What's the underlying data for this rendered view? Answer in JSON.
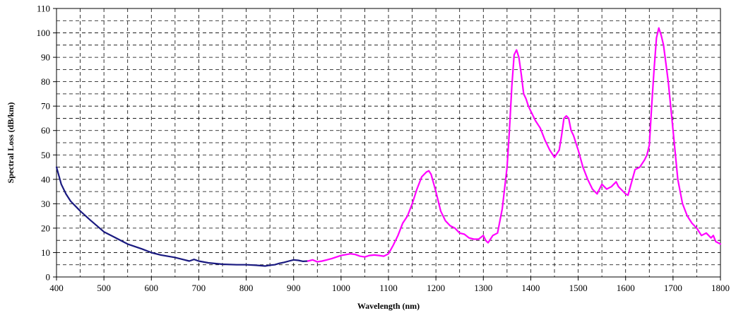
{
  "chart_data": {
    "type": "line",
    "xlabel": "Wavelength (nm)",
    "ylabel": "Spectral Loss (dB/km)",
    "xlim": [
      400,
      1800
    ],
    "ylim": [
      0,
      110
    ],
    "x_ticks": [
      400,
      500,
      600,
      700,
      800,
      900,
      1000,
      1100,
      1200,
      1300,
      1400,
      1500,
      1600,
      1700,
      1800
    ],
    "y_ticks": [
      0,
      10,
      20,
      30,
      40,
      50,
      60,
      70,
      80,
      90,
      100,
      110
    ],
    "x_minor_step": 50,
    "y_minor_step": 5,
    "grid": true,
    "legend": "none",
    "series": [
      {
        "color": "#1a1a80",
        "x": [
          400,
          410,
          420,
          430,
          440,
          450,
          470,
          500,
          520,
          550,
          580,
          600,
          620,
          650,
          670,
          680,
          690,
          700,
          720,
          750,
          780,
          800,
          820,
          840,
          850,
          860,
          870,
          880,
          890,
          900,
          910,
          920,
          930
        ],
        "y": [
          45,
          38,
          34,
          31,
          29,
          27,
          23.5,
          18.5,
          16.5,
          13.5,
          11.5,
          10,
          9,
          8,
          7,
          6.5,
          7.2,
          6.5,
          5.8,
          5.2,
          5,
          5,
          4.8,
          4.5,
          4.8,
          5,
          5.6,
          6,
          6.5,
          7,
          6.8,
          6.4,
          6.5
        ]
      },
      {
        "color": "#ff00ff",
        "x": [
          930,
          940,
          950,
          960,
          970,
          980,
          1000,
          1020,
          1030,
          1040,
          1050,
          1060,
          1070,
          1080,
          1090,
          1100,
          1110,
          1120,
          1130,
          1140,
          1150,
          1160,
          1170,
          1180,
          1185,
          1190,
          1200,
          1210,
          1220,
          1230,
          1240,
          1250,
          1260,
          1270,
          1280,
          1290,
          1300,
          1305,
          1310,
          1320,
          1330,
          1340,
          1350,
          1355,
          1360,
          1365,
          1370,
          1375,
          1380,
          1385,
          1390,
          1395,
          1400,
          1410,
          1420,
          1430,
          1440,
          1450,
          1460,
          1465,
          1470,
          1475,
          1480,
          1485,
          1490,
          1500,
          1510,
          1520,
          1530,
          1540,
          1550,
          1555,
          1560,
          1570,
          1580,
          1585,
          1590,
          1600,
          1605,
          1610,
          1620,
          1630,
          1640,
          1645,
          1650,
          1655,
          1660,
          1665,
          1670,
          1675,
          1680,
          1690,
          1700,
          1710,
          1720,
          1730,
          1740,
          1750,
          1760,
          1770,
          1780,
          1785,
          1790,
          1795,
          1800
        ],
        "y": [
          6.5,
          7,
          6.2,
          6.5,
          7,
          7.5,
          8.8,
          9.5,
          9.2,
          8.5,
          8.2,
          8.8,
          9,
          8.8,
          8.5,
          9.5,
          13,
          17,
          22,
          25,
          30,
          36,
          41,
          43,
          43.5,
          42,
          35,
          27,
          23,
          21,
          20,
          18,
          17.5,
          16,
          15.5,
          15.5,
          17,
          15,
          14,
          17,
          18,
          28,
          45,
          60,
          78,
          91,
          93,
          90,
          83,
          75,
          73,
          70,
          68,
          64,
          61,
          56,
          52,
          49,
          52,
          58,
          65,
          66,
          65,
          60,
          58,
          52,
          45,
          40,
          36,
          34,
          38,
          37,
          36,
          37,
          39,
          37,
          36,
          34,
          33.5,
          37,
          44,
          45,
          48,
          50,
          54,
          70,
          85,
          98,
          102,
          99,
          95,
          80,
          60,
          40,
          30,
          25,
          22,
          20,
          17,
          18,
          16,
          17,
          14.5,
          14,
          13.5
        ]
      }
    ]
  }
}
